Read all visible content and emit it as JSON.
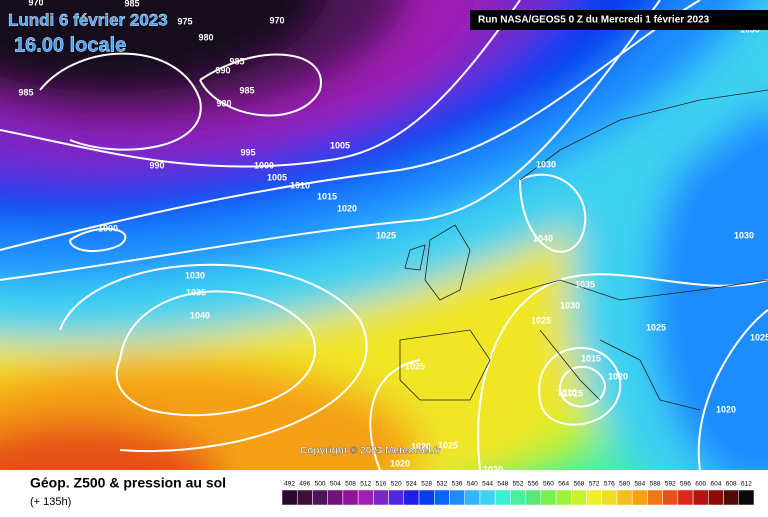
{
  "header": {
    "date": "Lundi 6 février 2023",
    "time": "16.00 locale",
    "run": "Run NASA/GEOS5 0 Z du Mercredi 1 février 2023"
  },
  "copyright": "Copyright © 2023 Meteociel.fr",
  "legend": {
    "title": "Géop. Z500 & pression au sol",
    "subtitle": "(+ 135h)",
    "ticks": [
      492,
      496,
      500,
      504,
      508,
      512,
      516,
      520,
      524,
      528,
      532,
      536,
      540,
      544,
      548,
      552,
      556,
      560,
      564,
      568,
      572,
      576,
      580,
      584,
      588,
      592,
      596,
      600,
      604,
      608,
      612
    ],
    "colors": [
      "#2a0a2a",
      "#3c0f3c",
      "#50145a",
      "#6e1478",
      "#8c1496",
      "#a01eb4",
      "#7828c8",
      "#5028dc",
      "#1e1ee6",
      "#0a3cf0",
      "#0a64f5",
      "#1e8cff",
      "#32b4ff",
      "#3cd2f0",
      "#3cf0d2",
      "#46f0a0",
      "#5ae678",
      "#78f050",
      "#a0f03c",
      "#c8f032",
      "#f0f028",
      "#f0dc28",
      "#f5be1e",
      "#f5a014",
      "#f07814",
      "#e65014",
      "#dc2814",
      "#b41414",
      "#8c0a0a",
      "#500a0a",
      "#0a0a0a"
    ]
  },
  "isobars": [
    970,
    975,
    970,
    980,
    985,
    990,
    985,
    980,
    985,
    995,
    985,
    990,
    1000,
    1005,
    1010,
    1005,
    1015,
    1020,
    1025,
    1000,
    1030,
    1035,
    1040,
    1030,
    1040,
    1035,
    1030,
    1025,
    1025,
    1015,
    1010,
    1020,
    1025,
    1020,
    1020,
    1020,
    1020,
    1015,
    1030,
    1025,
    1030,
    1025
  ]
}
